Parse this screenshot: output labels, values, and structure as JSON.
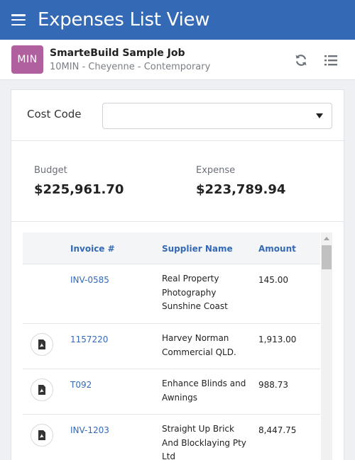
{
  "header": {
    "title": "Expenses List View",
    "menu_icon": "hamburger-menu-icon",
    "color": "#3469b6"
  },
  "job": {
    "avatar": "MIN",
    "avatar_color": "#b0609f",
    "title": "SmarteBuild Sample Job",
    "subtitle": "10MIN - Cheyenne - Contemporary",
    "actions": [
      "refresh-icon",
      "list-icon"
    ]
  },
  "filter": {
    "label": "Cost Code",
    "value": ""
  },
  "totals": {
    "budget_label": "Budget",
    "budget_value": "$225,961.70",
    "expense_label": "Expense",
    "expense_value": "$223,789.94"
  },
  "table": {
    "columns": [
      "Invoice #",
      "Supplier Name",
      "Amount"
    ],
    "rows": [
      {
        "has_pdf": false,
        "invoice": "INV-0585",
        "supplier": "Real Property Photography Sunshine Coast",
        "amount": "145.00"
      },
      {
        "has_pdf": true,
        "invoice": "1157220",
        "supplier": "Harvey Norman Commercial QLD.",
        "amount": "1,913.00"
      },
      {
        "has_pdf": true,
        "invoice": "T092",
        "supplier": "Enhance Blinds and Awnings",
        "amount": "988.73"
      },
      {
        "has_pdf": true,
        "invoice": "INV-1203",
        "supplier": "Straight Up Brick And Blocklaying Pty Ltd",
        "amount": "8,447.75"
      }
    ]
  }
}
